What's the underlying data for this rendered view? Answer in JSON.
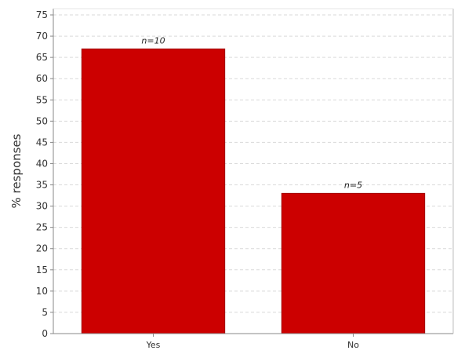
{
  "chart_data": {
    "type": "bar",
    "title": "",
    "xlabel": "",
    "ylabel": "% responses",
    "categories": [
      "Yes",
      "No"
    ],
    "values": [
      67,
      33
    ],
    "bar_labels": [
      "n=10",
      "n=5"
    ],
    "ylim": [
      0,
      75
    ],
    "yticks": [
      0,
      5,
      10,
      15,
      20,
      25,
      30,
      35,
      40,
      45,
      50,
      55,
      60,
      65,
      70,
      75
    ],
    "grid": true,
    "legend": "none",
    "bar_color": "#cc0000",
    "bar_edge_color": "#a30000",
    "grid_color": "#d9d9d9",
    "axis_color": "#888888"
  }
}
